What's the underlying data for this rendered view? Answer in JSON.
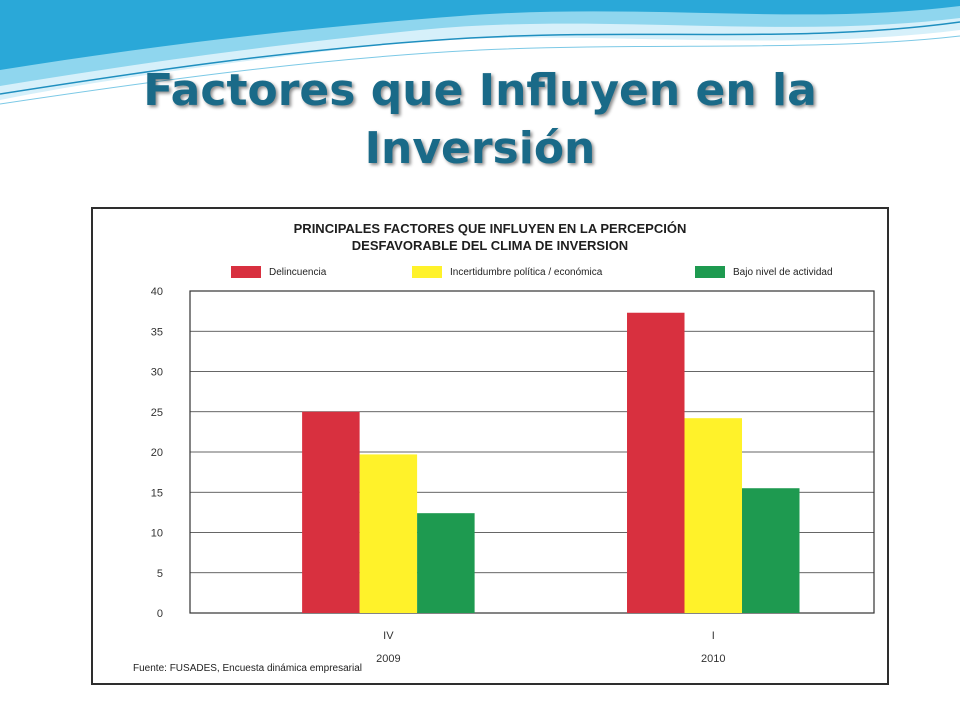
{
  "slide": {
    "title_line1": "Factores que Influyen en la",
    "title_line2": "Inversión",
    "title_color": "#1a6a88",
    "wave_colors": [
      "#2aa8d8",
      "#8fd6ee",
      "#d6f0fa"
    ]
  },
  "chart_data": {
    "type": "bar",
    "title_line1": "PRINCIPALES FACTORES QUE INFLUYEN EN LA PERCEPCIÓN",
    "title_line2": "DESFAVORABLE DEL CLIMA DE INVERSION",
    "categories": [
      "IV",
      "I"
    ],
    "category_groups": [
      "2009",
      "2010"
    ],
    "series": [
      {
        "name": "Delincuencia",
        "values": [
          25,
          37.3
        ],
        "color": "#d8303f"
      },
      {
        "name": "Incertidumbre política / económica",
        "values": [
          19.7,
          24.2
        ],
        "color": "#fff22a"
      },
      {
        "name": "Bajo nivel de actividad",
        "values": [
          12.4,
          15.5
        ],
        "color": "#1e9a50"
      }
    ],
    "yticks": [
      0,
      5,
      10,
      15,
      20,
      25,
      30,
      35,
      40
    ],
    "ylim": [
      0,
      40
    ],
    "grid": true,
    "legend_position": "top",
    "source": "Fuente: FUSADES, Encuesta dinámica empresarial"
  }
}
